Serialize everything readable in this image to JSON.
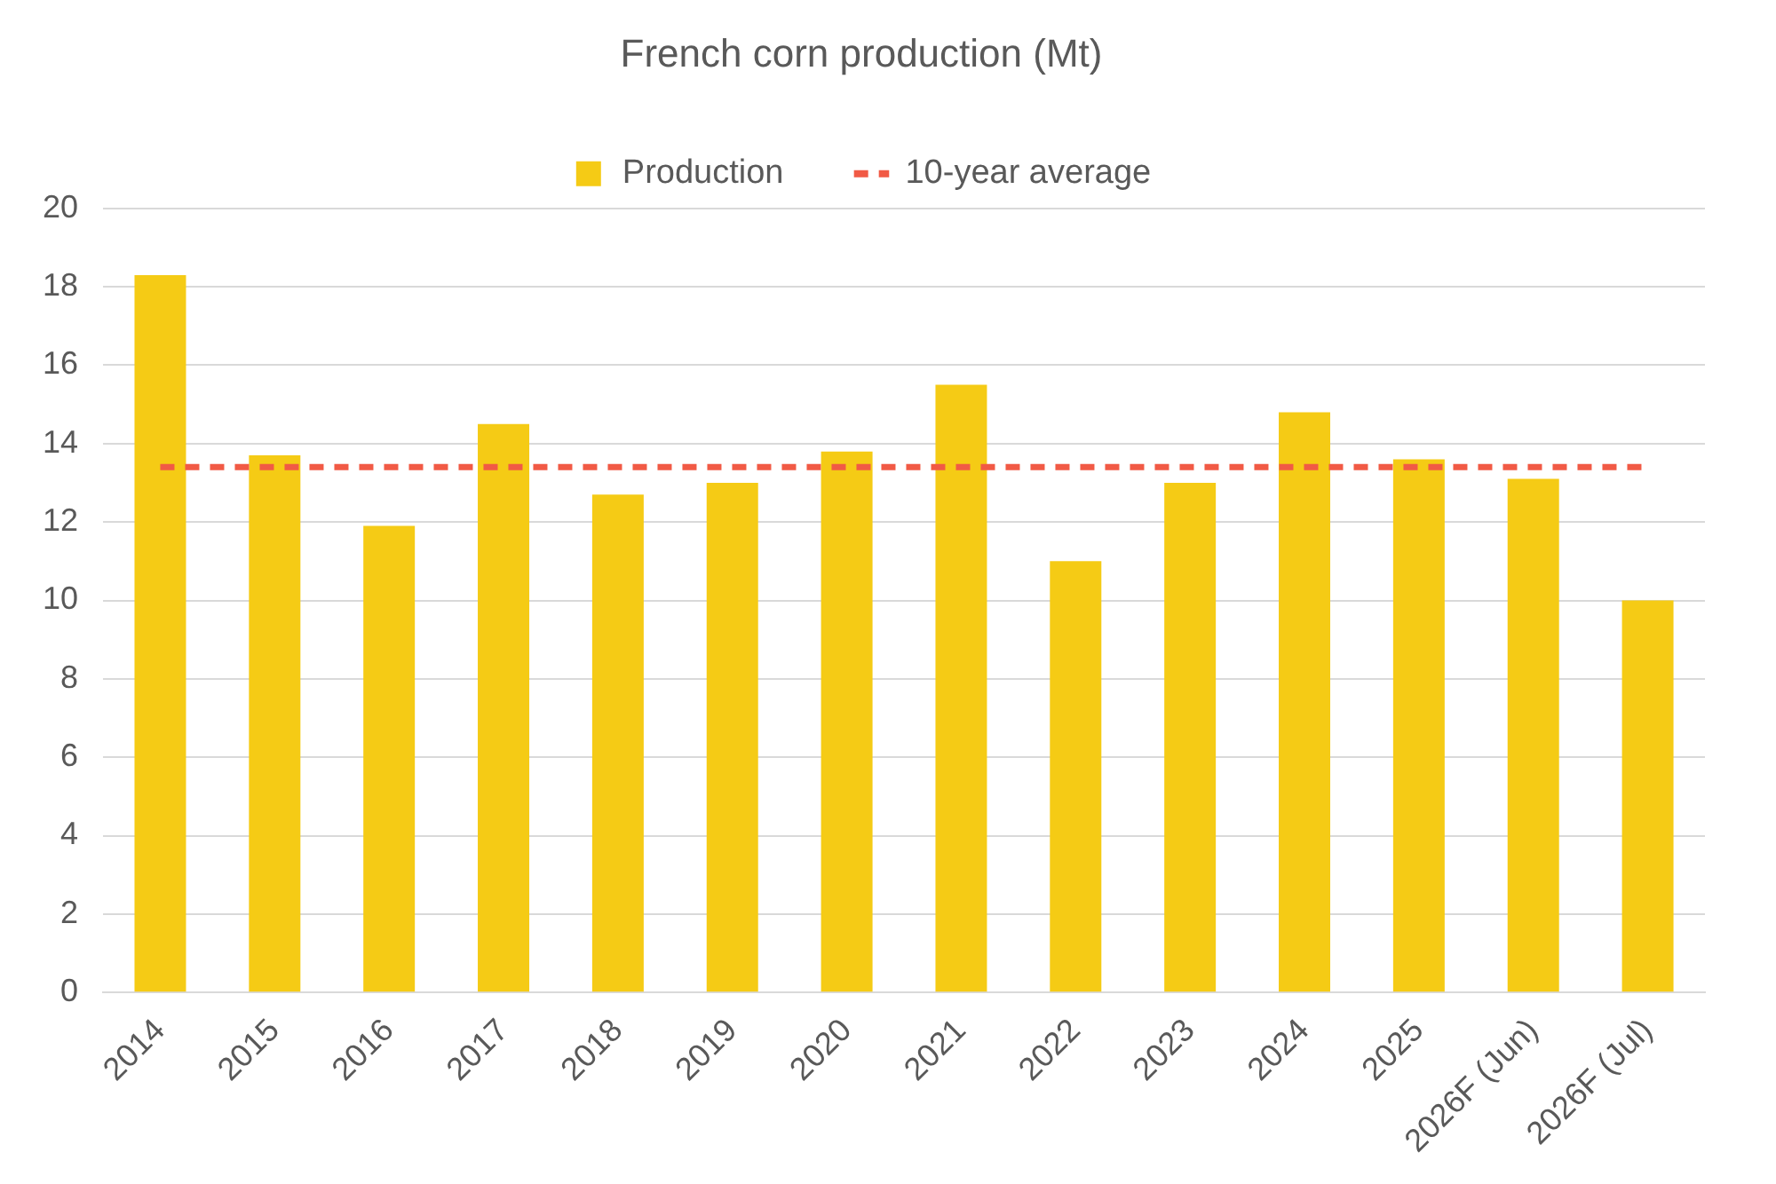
{
  "chart_data": {
    "type": "bar",
    "title": "French corn production (Mt)",
    "categories": [
      "2014",
      "2015",
      "2016",
      "2017",
      "2018",
      "2019",
      "2020",
      "2021",
      "2022",
      "2023",
      "2024",
      "2025",
      "2026F (Jun)",
      "2026F (Jul)"
    ],
    "series": [
      {
        "name": "Production",
        "color": "#f5cb15",
        "values": [
          18.3,
          13.7,
          11.9,
          14.5,
          12.7,
          13.0,
          13.8,
          15.5,
          11.0,
          13.0,
          14.8,
          13.6,
          13.1,
          10.0
        ]
      },
      {
        "name": "10-year average",
        "type": "line",
        "color": "#f15a45",
        "line_style": "dashed",
        "marker": "none",
        "values": [
          13.4,
          13.4,
          13.4,
          13.4,
          13.4,
          13.4,
          13.4,
          13.4,
          13.4,
          13.4,
          13.4,
          13.4,
          13.4,
          13.4
        ]
      }
    ],
    "ylim": [
      0,
      20
    ],
    "yticks": [
      0,
      2,
      4,
      6,
      8,
      10,
      12,
      14,
      16,
      18,
      20
    ],
    "grid": "y",
    "legend": "top"
  }
}
